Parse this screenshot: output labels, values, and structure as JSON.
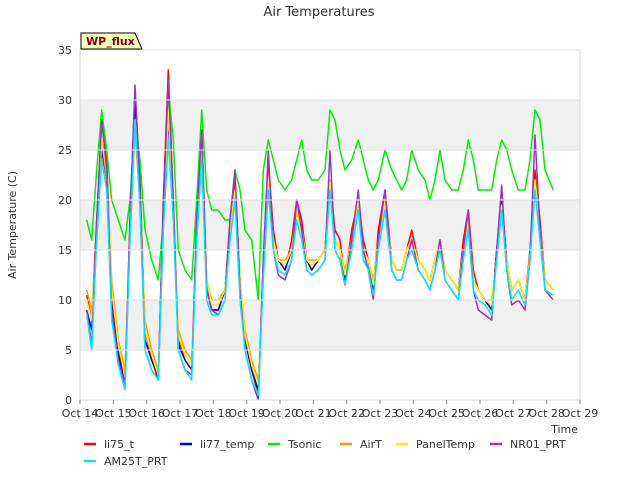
{
  "chart_data": {
    "type": "line",
    "title": "Air Temperatures",
    "xlabel": "Time",
    "ylabel": "Air Temperature (C)",
    "ylim": [
      0,
      35
    ],
    "xlim": [
      "Oct 14",
      "Oct 29"
    ],
    "y_ticks": [
      0,
      5,
      10,
      15,
      20,
      25,
      30,
      35
    ],
    "x_ticks": [
      "Oct 14",
      "Oct 15",
      "Oct 16",
      "Oct 17",
      "Oct 18",
      "Oct 19",
      "Oct 20",
      "Oct 21",
      "Oct 22",
      "Oct 23",
      "Oct 24",
      "Oct 25",
      "Oct 26",
      "Oct 27",
      "Oct 28",
      "Oct 29"
    ],
    "grid": "horizontal alternating bands",
    "legend_position": "bottom",
    "badge": "WP_flux",
    "x_unit": "days since Oct 14",
    "series": [
      {
        "name": "li75_t",
        "color": "#ff0000",
        "x": [
          0.2,
          0.35,
          0.5,
          0.65,
          0.8,
          0.95,
          1.15,
          1.35,
          1.5,
          1.65,
          1.8,
          1.95,
          2.15,
          2.35,
          2.5,
          2.65,
          2.8,
          2.95,
          3.15,
          3.35,
          3.5,
          3.65,
          3.8,
          3.95,
          4.15,
          4.35,
          4.5,
          4.65,
          4.8,
          4.95,
          5.15,
          5.35,
          5.5,
          5.65,
          5.8,
          5.95,
          6.15,
          6.35,
          6.5,
          6.65,
          6.8,
          6.95,
          7.15,
          7.35,
          7.5,
          7.65,
          7.8,
          7.95,
          8.15,
          8.35,
          8.5,
          8.65,
          8.8,
          8.95,
          9.15,
          9.35,
          9.5,
          9.65,
          9.8,
          9.95,
          10.15,
          10.35,
          10.5,
          10.65,
          10.8,
          10.95,
          11.15,
          11.35,
          11.5,
          11.65,
          11.8,
          11.95,
          12.15,
          12.35,
          12.5,
          12.65,
          12.8,
          12.95,
          13.15,
          13.35,
          13.5,
          13.65,
          13.8,
          13.95,
          14.2
        ],
        "y": [
          10.5,
          8,
          18,
          28,
          24,
          11,
          5,
          1.5,
          18,
          31,
          22,
          7,
          4,
          2,
          20,
          33,
          20,
          6,
          4,
          3,
          18,
          27,
          12,
          9,
          9,
          11,
          18,
          22,
          12,
          6,
          3,
          0.5,
          14,
          24,
          17,
          14,
          13,
          16,
          20,
          18,
          14,
          13,
          14,
          15,
          22,
          17,
          16,
          12,
          17,
          20,
          16,
          14,
          11,
          17,
          21,
          14,
          13,
          13,
          15,
          17,
          14,
          13,
          12,
          14,
          16,
          13,
          12,
          11,
          16,
          19,
          13,
          11,
          10,
          9,
          15,
          20,
          14,
          11,
          12,
          10,
          15,
          23,
          18,
          12,
          11
        ]
      },
      {
        "name": "li77_temp",
        "color": "#0000cc",
        "x": [
          0.2,
          0.35,
          0.5,
          0.65,
          0.8,
          0.95,
          1.15,
          1.35,
          1.5,
          1.65,
          1.8,
          1.95,
          2.15,
          2.35,
          2.5,
          2.65,
          2.8,
          2.95,
          3.15,
          3.35,
          3.5,
          3.65,
          3.8,
          3.95,
          4.15,
          4.35,
          4.5,
          4.65,
          4.8,
          4.95,
          5.15,
          5.35,
          5.5,
          5.65,
          5.8,
          5.95,
          6.15,
          6.35,
          6.5,
          6.65,
          6.8,
          6.95,
          7.15,
          7.35,
          7.5,
          7.65,
          7.8,
          7.95,
          8.15,
          8.35,
          8.5,
          8.65,
          8.8,
          8.95,
          9.15,
          9.35,
          9.5,
          9.65,
          9.8,
          9.95,
          10.15,
          10.35,
          10.5,
          10.65,
          10.8,
          10.95,
          11.15,
          11.35,
          11.5,
          11.65,
          11.8,
          11.95,
          12.15,
          12.35,
          12.5,
          12.65,
          12.8,
          12.95,
          13.15,
          13.35,
          13.5,
          13.65,
          13.8,
          13.95,
          14.2
        ],
        "y": [
          9,
          7,
          17,
          25,
          22,
          10,
          4.5,
          1.5,
          17,
          30,
          21,
          6,
          4,
          2.5,
          19,
          28,
          19,
          5.5,
          4,
          3,
          17,
          25,
          11,
          9,
          9,
          11,
          17,
          21,
          11,
          6,
          3,
          1,
          13,
          22,
          16,
          14,
          13,
          15,
          19,
          17,
          14,
          13,
          14,
          15,
          22,
          16,
          15,
          12,
          16,
          20,
          15,
          14,
          11,
          16,
          20,
          14,
          13,
          13,
          15,
          16,
          14,
          13,
          12,
          14,
          16,
          13,
          12,
          11,
          15,
          18,
          12,
          11,
          10,
          9,
          15,
          20,
          14,
          11,
          12,
          10,
          14,
          22,
          17,
          12,
          11
        ]
      },
      {
        "name": "Tsonic",
        "color": "#00ee00",
        "x": [
          0.2,
          0.35,
          0.5,
          0.65,
          0.8,
          0.95,
          1.15,
          1.35,
          1.5,
          1.65,
          1.8,
          1.95,
          2.15,
          2.35,
          2.5,
          2.65,
          2.8,
          2.95,
          3.15,
          3.35,
          3.5,
          3.65,
          3.8,
          3.95,
          4.15,
          4.35,
          4.5,
          4.65,
          4.8,
          4.95,
          5.15,
          5.35,
          5.5,
          5.65,
          5.8,
          5.95,
          6.15,
          6.35,
          6.5,
          6.65,
          6.8,
          6.95,
          7.15,
          7.35,
          7.5,
          7.65,
          7.8,
          7.95,
          8.15,
          8.35,
          8.5,
          8.65,
          8.8,
          8.95,
          9.15,
          9.35,
          9.5,
          9.65,
          9.8,
          9.95,
          10.15,
          10.35,
          10.5,
          10.65,
          10.8,
          10.95,
          11.15,
          11.35,
          11.5,
          11.65,
          11.8,
          11.95,
          12.15,
          12.35,
          12.5,
          12.65,
          12.8,
          12.95,
          13.15,
          13.35,
          13.5,
          13.65,
          13.8,
          13.95,
          14.2
        ],
        "y": [
          18,
          16,
          23,
          29,
          25,
          20,
          18,
          16,
          20,
          28,
          24,
          17,
          14,
          12,
          18,
          31,
          26,
          15,
          13,
          12,
          20,
          29,
          21,
          19,
          19,
          18,
          18,
          23,
          21,
          17,
          16,
          10,
          23,
          26,
          24,
          22,
          21,
          22,
          24,
          26,
          23,
          22,
          22,
          23,
          29,
          28,
          25,
          23,
          24,
          26,
          24,
          22,
          21,
          22,
          25,
          23,
          22,
          21,
          22,
          25,
          23,
          22,
          20,
          22,
          25,
          22,
          21,
          21,
          23,
          26,
          24,
          21,
          21,
          21,
          24,
          26,
          25,
          23,
          21,
          21,
          24,
          29,
          28,
          23,
          21
        ]
      },
      {
        "name": "AirT",
        "color": "#ff9900",
        "x": [
          0.2,
          0.35,
          0.5,
          0.65,
          0.8,
          0.95,
          1.15,
          1.35,
          1.5,
          1.65,
          1.8,
          1.95,
          2.15,
          2.35,
          2.5,
          2.65,
          2.8,
          2.95,
          3.15,
          3.35,
          3.5,
          3.65,
          3.8,
          3.95,
          4.15,
          4.35,
          4.5,
          4.65,
          4.8,
          4.95,
          5.15,
          5.35,
          5.5,
          5.65,
          5.8,
          5.95,
          6.15,
          6.35,
          6.5,
          6.65,
          6.8,
          6.95,
          7.15,
          7.35,
          7.5,
          7.65,
          7.8,
          7.95,
          8.15,
          8.35,
          8.5,
          8.65,
          8.8,
          8.95,
          9.15,
          9.35,
          9.5,
          9.65,
          9.8,
          9.95,
          10.15,
          10.35,
          10.5,
          10.65,
          10.8,
          10.95,
          11.15,
          11.35,
          11.5,
          11.65,
          11.8,
          11.95,
          12.15,
          12.35,
          12.5,
          12.65,
          12.8,
          12.95,
          13.15,
          13.35,
          13.5,
          13.65,
          13.8,
          13.95,
          14.2
        ],
        "y": [
          11,
          9,
          16,
          26,
          22,
          12,
          6,
          3,
          16,
          27,
          20,
          8,
          5,
          3,
          17,
          29,
          19,
          7,
          5,
          4,
          16,
          25,
          12,
          10,
          10,
          11,
          16,
          20,
          12,
          7,
          4,
          2,
          13,
          21,
          16,
          14,
          14,
          15,
          19,
          17,
          14,
          14,
          14,
          15,
          21,
          16,
          15,
          13,
          16,
          19,
          15,
          14,
          12,
          16,
          20,
          14,
          13,
          13,
          15,
          16,
          14,
          13,
          12,
          14,
          16,
          13,
          12,
          11,
          15,
          18,
          12,
          11,
          10,
          10,
          14,
          19,
          14,
          11,
          12,
          10,
          14,
          22,
          17,
          12,
          11
        ]
      },
      {
        "name": "PanelTemp",
        "color": "#ffee00",
        "x": [
          0.2,
          0.35,
          0.5,
          0.65,
          0.8,
          0.95,
          1.15,
          1.35,
          1.5,
          1.65,
          1.8,
          1.95,
          2.15,
          2.35,
          2.5,
          2.65,
          2.8,
          2.95,
          3.15,
          3.35,
          3.5,
          3.65,
          3.8,
          3.95,
          4.15,
          4.35,
          4.5,
          4.65,
          4.8,
          4.95,
          5.15,
          5.35,
          5.5,
          5.65,
          5.8,
          5.95,
          6.15,
          6.35,
          6.5,
          6.65,
          6.8,
          6.95,
          7.15,
          7.35,
          7.5,
          7.65,
          7.8,
          7.95,
          8.15,
          8.35,
          8.5,
          8.65,
          8.8,
          8.95,
          9.15,
          9.35,
          9.5,
          9.65,
          9.8,
          9.95,
          10.15,
          10.35,
          10.5,
          10.65,
          10.8,
          10.95,
          11.15,
          11.35,
          11.5,
          11.65,
          11.8,
          11.95,
          12.15,
          12.35,
          12.5,
          12.65,
          12.8,
          12.95,
          13.15,
          13.35,
          13.5,
          13.65,
          13.8,
          13.95,
          14.2
        ],
        "y": [
          10,
          8,
          17,
          26,
          23,
          11,
          5.5,
          2.5,
          17,
          28,
          21,
          7,
          4.5,
          2.5,
          18,
          29,
          19,
          6.5,
          4.5,
          3.5,
          17,
          26,
          12,
          9.5,
          9.5,
          11,
          17,
          21,
          12,
          6.5,
          3.5,
          1.5,
          13,
          22,
          16,
          14,
          13.5,
          15,
          19,
          17,
          14,
          13.5,
          14,
          15,
          22,
          16,
          15,
          12.5,
          16,
          20,
          15,
          14,
          11.5,
          16,
          20,
          14,
          13,
          13,
          15,
          16,
          14,
          13,
          12,
          14,
          16,
          13,
          12,
          11,
          15,
          18,
          12,
          11,
          10,
          9.5,
          14.5,
          19.5,
          14,
          11,
          12,
          10,
          14.5,
          22,
          17,
          12,
          11
        ]
      },
      {
        "name": "NR01_PRT",
        "color": "#9933cc",
        "x": [
          0.2,
          0.35,
          0.5,
          0.65,
          0.8,
          0.95,
          1.15,
          1.35,
          1.5,
          1.65,
          1.8,
          1.95,
          2.15,
          2.35,
          2.5,
          2.65,
          2.8,
          2.95,
          3.15,
          3.35,
          3.5,
          3.65,
          3.8,
          3.95,
          4.15,
          4.35,
          4.5,
          4.65,
          4.8,
          4.95,
          5.15,
          5.35,
          5.5,
          5.65,
          5.8,
          5.95,
          6.15,
          6.35,
          6.5,
          6.65,
          6.8,
          6.95,
          7.15,
          7.35,
          7.5,
          7.65,
          7.8,
          7.95,
          8.15,
          8.35,
          8.5,
          8.65,
          8.8,
          8.95,
          9.15,
          9.35,
          9.5,
          9.65,
          9.8,
          9.95,
          10.15,
          10.35,
          10.5,
          10.65,
          10.8,
          10.95,
          11.15,
          11.35,
          11.5,
          11.65,
          11.8,
          11.95,
          12.15,
          12.35,
          12.5,
          12.65,
          12.8,
          12.95,
          13.15,
          13.35,
          13.5,
          13.65,
          13.8,
          13.95,
          14.2
        ],
        "y": [
          9,
          5.5,
          18,
          28,
          23,
          9,
          4,
          1.5,
          18,
          31.5,
          21,
          5,
          3,
          2,
          19,
          32,
          20,
          5,
          3,
          2.5,
          18,
          27,
          11,
          9,
          8.5,
          10,
          18,
          23,
          11,
          5,
          2,
          0,
          14,
          25,
          15,
          12.5,
          12,
          14,
          20,
          17,
          13,
          12.5,
          13,
          14,
          25,
          15,
          14,
          11.5,
          16,
          21,
          15,
          13,
          10,
          16,
          21,
          13,
          12,
          12,
          14,
          16,
          13,
          12,
          11,
          13,
          16,
          12,
          11,
          10,
          15,
          19,
          11,
          9,
          8.5,
          8,
          15,
          21.5,
          13,
          9.5,
          10,
          9,
          14,
          26.5,
          17,
          11,
          10
        ]
      },
      {
        "name": "AM25T_PRT",
        "color": "#00e5ff",
        "x": [
          0.2,
          0.35,
          0.5,
          0.65,
          0.8,
          0.95,
          1.15,
          1.35,
          1.5,
          1.65,
          1.8,
          1.95,
          2.15,
          2.35,
          2.5,
          2.65,
          2.8,
          2.95,
          3.15,
          3.35,
          3.5,
          3.65,
          3.8,
          3.95,
          4.15,
          4.35,
          4.5,
          4.65,
          4.8,
          4.95,
          5.15,
          5.35,
          5.5,
          5.65,
          5.8,
          5.95,
          6.15,
          6.35,
          6.5,
          6.65,
          6.8,
          6.95,
          7.15,
          7.35,
          7.5,
          7.65,
          7.8,
          7.95,
          8.15,
          8.35,
          8.5,
          8.65,
          8.8,
          8.95,
          9.15,
          9.35,
          9.5,
          9.65,
          9.8,
          9.95,
          10.15,
          10.35,
          10.5,
          10.65,
          10.8,
          10.95,
          11.15,
          11.35,
          11.5,
          11.65,
          11.8,
          11.95,
          12.15,
          12.35,
          12.5,
          12.65,
          12.8,
          12.95,
          13.15,
          13.35,
          13.5,
          13.65,
          13.8,
          13.95,
          14.2
        ],
        "y": [
          8.5,
          5,
          16,
          24,
          21,
          8,
          3.5,
          1,
          16,
          28,
          19,
          5,
          3,
          2,
          17,
          26,
          18,
          5,
          3,
          2,
          16,
          24,
          10,
          8.5,
          8.5,
          10,
          16,
          20,
          10,
          5,
          2,
          0.5,
          12,
          21,
          15,
          13,
          12.5,
          14,
          18,
          16,
          13,
          12.5,
          13,
          14,
          21,
          15,
          14,
          11.5,
          15,
          19,
          14,
          13,
          10.5,
          15,
          19,
          13,
          12,
          12,
          14,
          15,
          13,
          12,
          11,
          13,
          15,
          12,
          11,
          10,
          14,
          17,
          11,
          10,
          9.5,
          8.5,
          14,
          19,
          13,
          10,
          11,
          9.5,
          14,
          21,
          16,
          11,
          10.5
        ]
      }
    ]
  }
}
